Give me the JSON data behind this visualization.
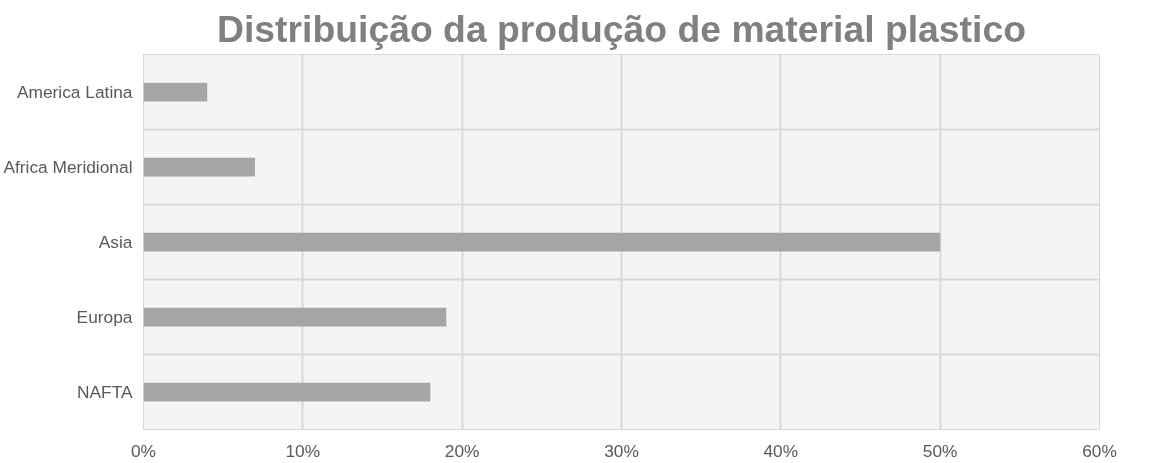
{
  "chart_data": {
    "type": "bar",
    "orientation": "horizontal",
    "title": "Distribuição da produção de material plastico",
    "categories": [
      "America Latina",
      "Africa Meridional",
      "Asia",
      "Europa",
      "NAFTA"
    ],
    "values": [
      4,
      7,
      50,
      19,
      18
    ],
    "color": "#a5a5a5",
    "xlim": [
      0,
      60
    ],
    "xticks": [
      {
        "value": 0,
        "label": "0%"
      },
      {
        "value": 10,
        "label": "10%"
      },
      {
        "value": 20,
        "label": "20%"
      },
      {
        "value": 30,
        "label": "30%"
      },
      {
        "value": 40,
        "label": "40%"
      },
      {
        "value": 50,
        "label": "50%"
      },
      {
        "value": 60,
        "label": "60%"
      }
    ],
    "grid": true
  }
}
